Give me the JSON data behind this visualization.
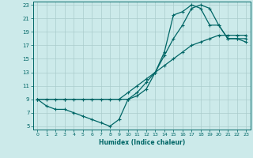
{
  "xlabel": "Humidex (Indice chaleur)",
  "bg_color": "#cceaea",
  "grid_color": "#aacccc",
  "line_color": "#006666",
  "xlim": [
    -0.5,
    23.5
  ],
  "ylim": [
    4.5,
    23.5
  ],
  "xticks": [
    0,
    1,
    2,
    3,
    4,
    5,
    6,
    7,
    8,
    9,
    10,
    11,
    12,
    13,
    14,
    15,
    16,
    17,
    18,
    19,
    20,
    21,
    22,
    23
  ],
  "yticks": [
    5,
    7,
    9,
    11,
    13,
    15,
    17,
    19,
    21,
    23
  ],
  "curve1_x": [
    0,
    1,
    2,
    3,
    4,
    5,
    6,
    7,
    8,
    9,
    10,
    11,
    12,
    13,
    14,
    15,
    16,
    17,
    18,
    19,
    20,
    21,
    22,
    23
  ],
  "curve1_y": [
    9,
    9,
    9,
    9,
    9,
    9,
    9,
    9,
    9,
    9,
    10,
    11,
    12,
    13,
    14,
    15,
    16,
    17,
    17.5,
    18,
    18.5,
    18.5,
    18.5,
    18.5
  ],
  "curve2_x": [
    0,
    1,
    2,
    3,
    4,
    5,
    6,
    7,
    8,
    9,
    10,
    11,
    12,
    13,
    14,
    15,
    16,
    17,
    18,
    19,
    20,
    21,
    22,
    23
  ],
  "curve2_y": [
    9,
    8,
    7.5,
    7.5,
    7,
    6.5,
    6,
    5.5,
    5,
    6,
    9,
    10,
    11.5,
    13,
    15.5,
    18,
    20,
    22.5,
    23,
    22.5,
    20,
    18,
    18,
    18
  ],
  "curve3_x": [
    0,
    3,
    10,
    11,
    12,
    13,
    14,
    15,
    16,
    17,
    18,
    19,
    20,
    21,
    22,
    23
  ],
  "curve3_y": [
    9,
    9,
    9,
    9.5,
    10.5,
    13,
    16,
    21.5,
    22,
    23,
    22.5,
    20,
    20,
    18,
    18,
    17.5
  ]
}
